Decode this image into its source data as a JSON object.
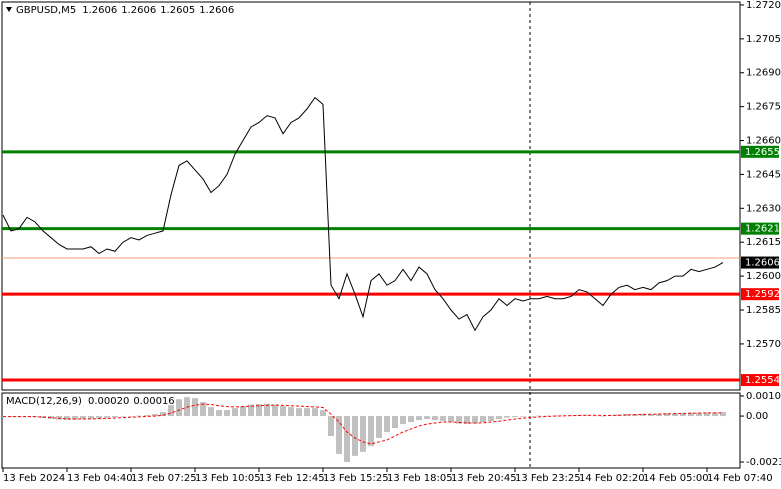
{
  "chart_data": [
    {
      "type": "line",
      "title": "GBPUSD,M5",
      "ohlc": [
        1.2606,
        1.2606,
        1.2605,
        1.2606
      ],
      "categories": [
        "13 Feb 2024",
        null,
        null,
        null,
        null,
        null,
        null,
        null,
        "13 Feb 04:40",
        null,
        null,
        null,
        null,
        null,
        null,
        null,
        "13 Feb 07:25",
        null,
        null,
        null,
        null,
        null,
        null,
        null,
        "13 Feb 10:05",
        null,
        null,
        null,
        null,
        null,
        null,
        null,
        "13 Feb 12:45",
        null,
        null,
        null,
        null,
        null,
        null,
        null,
        "13 Feb 15:25",
        null,
        null,
        null,
        null,
        null,
        null,
        null,
        "13 Feb 18:05",
        null,
        null,
        null,
        null,
        null,
        null,
        null,
        "13 Feb 20:45",
        null,
        null,
        null,
        null,
        null,
        null,
        null,
        "13 Feb 23:25",
        null,
        null,
        null,
        null,
        null,
        null,
        null,
        "14 Feb 02:20",
        null,
        null,
        null,
        null,
        null,
        null,
        null,
        "14 Feb 05:00",
        null,
        null,
        null,
        null,
        null,
        null,
        null,
        "14 Feb 07:40",
        null,
        null
      ],
      "series": [
        {
          "color": "#000000",
          "values": [
            1.2627,
            1.262,
            1.2621,
            1.2626,
            1.2624,
            1.262,
            1.2617,
            1.2614,
            1.2612,
            1.2612,
            1.2612,
            1.2613,
            1.261,
            1.2612,
            1.2611,
            1.2615,
            1.2617,
            1.2616,
            1.2618,
            1.2619,
            1.262,
            1.2636,
            1.2649,
            1.2651,
            1.2647,
            1.2643,
            1.2637,
            1.264,
            1.2645,
            1.2654,
            1.266,
            1.2666,
            1.2668,
            1.2671,
            1.267,
            1.2663,
            1.2668,
            1.267,
            1.2674,
            1.2679,
            1.2676,
            1.2596,
            1.259,
            1.2601,
            1.2592,
            1.2582,
            1.2598,
            1.2601,
            1.2596,
            1.2598,
            1.2603,
            1.2598,
            1.2604,
            1.2601,
            1.2594,
            1.259,
            1.2585,
            1.2581,
            1.2583,
            1.2576,
            1.2582,
            1.2585,
            1.259,
            1.2587,
            1.259,
            1.2589,
            1.259,
            1.259,
            1.2591,
            1.259,
            1.259,
            1.2591,
            1.2594,
            1.2593,
            1.259,
            1.2587,
            1.2592,
            1.2595,
            1.2596,
            1.2594,
            1.2595,
            1.2594,
            1.2597,
            1.2598,
            1.26,
            1.26,
            1.2603,
            1.2602,
            1.2603,
            1.2604,
            1.2606
          ]
        }
      ],
      "levels": [
        {
          "value": 1.2655,
          "color": "#008000"
        },
        {
          "value": 1.2621,
          "color": "#008000"
        },
        {
          "value": 1.2592,
          "color": "#ff0000"
        },
        {
          "value": 1.2554,
          "color": "#ff0000"
        }
      ],
      "bid": 1.2606,
      "ask_line": {
        "value": 1.2608,
        "color": "#f4a07a"
      },
      "ylim": [
        1.25496,
        1.27213
      ],
      "yticks": [
        {
          "value": 1.272,
          "label": "1.2720"
        },
        1.2705,
        {
          "value": 1.269,
          "label": "1.2690"
        },
        1.2675,
        {
          "value": 1.266,
          "label": "1.2660"
        },
        1.2645,
        {
          "value": 1.263,
          "label": "1.2630"
        },
        1.2615,
        {
          "value": 1.26,
          "label": "1.2600"
        },
        1.2585,
        {
          "value": 1.257,
          "label": "1.2570"
        }
      ]
    },
    {
      "type": "macd",
      "title": "MACD(12,26,9)",
      "values": [
        0.0002,
        0.00016
      ],
      "value_labels": [
        "0.00020",
        "0.00016"
      ],
      "series": [
        {
          "color": "#c0c0c0",
          "values": [
            -2e-05,
            -5e-05,
            -3e-05,
            -2e-05,
            -5e-05,
            -0.0001,
            -0.00014,
            -0.00018,
            -0.0002,
            -0.00018,
            -0.00015,
            -0.00012,
            -0.00012,
            -8e-05,
            -6e-05,
            -3e-05,
            0,
            2e-05,
            5e-05,
            0.0001,
            0.0002,
            0.00055,
            0.00085,
            0.00095,
            0.0009,
            0.0007,
            0.00045,
            0.0003,
            0.0003,
            0.0004,
            0.0005,
            0.00058,
            0.0006,
            0.00062,
            0.00058,
            0.0005,
            0.00045,
            0.0004,
            0.0004,
            0.0004,
            0.0003,
            -0.001,
            -0.0019,
            -0.00231,
            -0.002,
            -0.0018,
            -0.0015,
            -0.0011,
            -0.0008,
            -0.0006,
            -0.0004,
            -0.0003,
            -0.0002,
            -0.00015,
            -0.0002,
            -0.00025,
            -0.0003,
            -0.00038,
            -0.0004,
            -0.00038,
            -0.0003,
            -0.00025,
            -0.00015,
            -8e-05,
            -5e-05,
            -3e-05,
            0,
            2e-05,
            2e-05,
            3e-05,
            2e-05,
            3e-05,
            5e-05,
            5e-05,
            2e-05,
            0,
            3e-05,
            8e-05,
            0.0001,
            0.0001,
            0.00012,
            0.0001,
            0.00012,
            0.00015,
            0.00015,
            0.00016,
            0.00018,
            0.00017,
            0.00018,
            0.00018,
            0.0002
          ]
        },
        {
          "color": "#ff0000",
          "values": [
            -3e-05,
            -3e-05,
            -3e-05,
            -3e-05,
            -3e-05,
            -5e-05,
            -8e-05,
            -0.00011,
            -0.00014,
            -0.00015,
            -0.00015,
            -0.00014,
            -0.00013,
            -0.00012,
            -0.0001,
            -8e-05,
            -6e-05,
            -4e-05,
            -2e-05,
            0,
            4e-05,
            0.00015,
            0.0003,
            0.00045,
            0.00055,
            0.0006,
            0.00058,
            0.00052,
            0.00048,
            0.00046,
            0.00047,
            0.0005,
            0.00052,
            0.00054,
            0.00055,
            0.00054,
            0.00052,
            0.0005,
            0.00048,
            0.00046,
            0.00043,
            0.0001,
            -0.0003,
            -0.0008,
            -0.0011,
            -0.0013,
            -0.0014,
            -0.0013,
            -0.0012,
            -0.001,
            -0.0008,
            -0.00065,
            -0.0005,
            -0.0004,
            -0.00035,
            -0.0003,
            -0.0003,
            -0.00032,
            -0.00034,
            -0.00035,
            -0.00034,
            -0.0003,
            -0.00026,
            -0.0002,
            -0.00015,
            -0.0001,
            -7e-05,
            -4e-05,
            -2e-05,
            0,
            1e-05,
            2e-05,
            3e-05,
            4e-05,
            4e-05,
            3e-05,
            3e-05,
            4e-05,
            6e-05,
            7e-05,
            8e-05,
            9e-05,
            0.0001,
            0.00011,
            0.00012,
            0.00013,
            0.00014,
            0.00015,
            0.00016,
            0.00016,
            0.00016
          ]
        }
      ],
      "ylim": [
        -0.00261,
        0.00116
      ],
      "yticks": [
        0.00101,
        {
          "value": 0,
          "label": "0.00"
        },
        -0.00231
      ]
    }
  ]
}
